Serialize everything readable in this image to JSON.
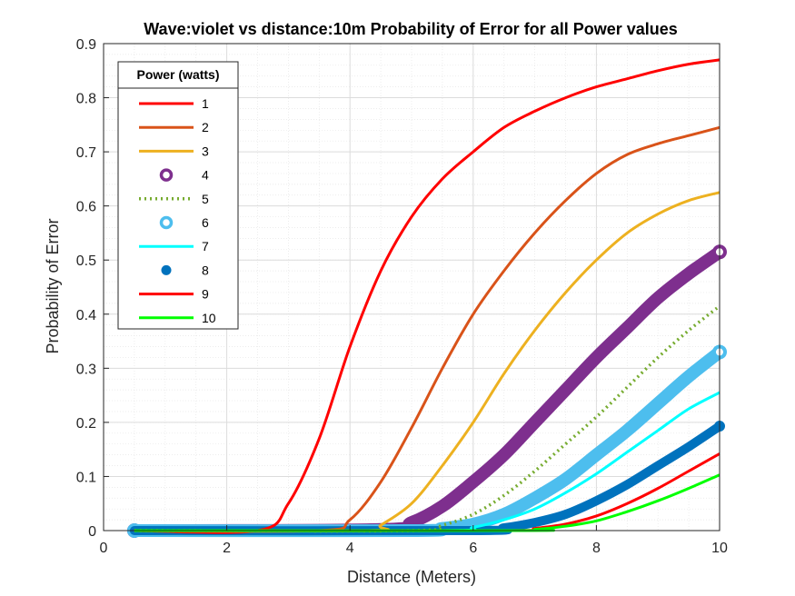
{
  "chart_data": {
    "type": "line",
    "title": "Wave:violet vs distance:10m Probability of Error for all Power values",
    "xlabel": "Distance (Meters)",
    "ylabel": "Probability of Error",
    "xlim": [
      0,
      10
    ],
    "ylim": [
      0,
      0.9
    ],
    "xticks": [
      "0",
      "2",
      "4",
      "6",
      "8",
      "10"
    ],
    "yticks": [
      "0",
      "0.1",
      "0.2",
      "0.3",
      "0.4",
      "0.5",
      "0.6",
      "0.7",
      "0.8",
      "0.9"
    ],
    "grid": true,
    "minor_grid": true,
    "legend": {
      "title": "Power (watts)",
      "placement": "top-left"
    },
    "series": [
      {
        "name": "1",
        "style": "line",
        "color": "#ff0000",
        "x": [
          0.5,
          2.5,
          3.0,
          3.5,
          4.0,
          4.5,
          5.0,
          5.5,
          6.0,
          6.5,
          7.0,
          7.5,
          8.0,
          8.5,
          9.0,
          9.5,
          10.0
        ],
        "y": [
          0,
          0,
          0.05,
          0.17,
          0.34,
          0.48,
          0.58,
          0.65,
          0.7,
          0.745,
          0.775,
          0.8,
          0.82,
          0.835,
          0.85,
          0.862,
          0.87
        ]
      },
      {
        "name": "2",
        "style": "line",
        "color": "#d95319",
        "x": [
          0.5,
          3.5,
          4.0,
          4.5,
          5.0,
          5.5,
          6.0,
          6.5,
          7.0,
          7.5,
          8.0,
          8.5,
          9.0,
          9.5,
          10.0
        ],
        "y": [
          0,
          0,
          0.02,
          0.09,
          0.19,
          0.3,
          0.4,
          0.48,
          0.55,
          0.61,
          0.66,
          0.695,
          0.715,
          0.73,
          0.745
        ]
      },
      {
        "name": "3",
        "style": "line",
        "color": "#edb120",
        "x": [
          0.5,
          4.3,
          4.5,
          5.0,
          5.5,
          6.0,
          6.5,
          7.0,
          7.5,
          8.0,
          8.5,
          9.0,
          9.5,
          10.0
        ],
        "y": [
          0,
          0,
          0.01,
          0.05,
          0.12,
          0.2,
          0.29,
          0.37,
          0.44,
          0.5,
          0.55,
          0.585,
          0.61,
          0.625
        ]
      },
      {
        "name": "4",
        "style": "marker",
        "color": "#7e2f8e",
        "x": [
          0.5,
          4.5,
          5.0,
          5.5,
          6.0,
          6.5,
          7.0,
          7.5,
          8.0,
          8.5,
          9.0,
          9.5,
          10.0
        ],
        "y": [
          0,
          0.002,
          0.015,
          0.045,
          0.09,
          0.14,
          0.2,
          0.26,
          0.32,
          0.375,
          0.43,
          0.475,
          0.515
        ]
      },
      {
        "name": "5",
        "style": "dotted",
        "color": "#77ac30",
        "x": [
          0.5,
          5.0,
          5.5,
          6.0,
          6.5,
          7.0,
          7.5,
          8.0,
          8.5,
          9.0,
          9.5,
          10.0
        ],
        "y": [
          0,
          0,
          0.01,
          0.03,
          0.065,
          0.11,
          0.16,
          0.21,
          0.265,
          0.32,
          0.37,
          0.415
        ]
      },
      {
        "name": "6",
        "style": "marker",
        "color": "#4dbeee",
        "x": [
          0.5,
          5.0,
          5.5,
          6.0,
          6.5,
          7.0,
          7.5,
          8.0,
          8.5,
          9.0,
          9.5,
          10.0
        ],
        "y": [
          0,
          0,
          0.004,
          0.012,
          0.03,
          0.06,
          0.095,
          0.14,
          0.185,
          0.235,
          0.285,
          0.33
        ]
      },
      {
        "name": "7",
        "style": "line",
        "color": "#00ffff",
        "x": [
          0.5,
          5.5,
          6.0,
          6.5,
          7.0,
          7.5,
          8.0,
          8.5,
          9.0,
          9.5,
          10.0
        ],
        "y": [
          0,
          0,
          0.006,
          0.02,
          0.04,
          0.07,
          0.105,
          0.145,
          0.185,
          0.225,
          0.255
        ]
      },
      {
        "name": "8",
        "style": "marker-filled",
        "color": "#0072bd",
        "x": [
          0.5,
          6.0,
          6.5,
          7.0,
          7.5,
          8.0,
          8.5,
          9.0,
          9.5,
          10.0
        ],
        "y": [
          0,
          0,
          0.005,
          0.015,
          0.03,
          0.055,
          0.085,
          0.12,
          0.155,
          0.193
        ]
      },
      {
        "name": "9",
        "style": "line",
        "color": "#ff0000",
        "x": [
          0.5,
          6.5,
          7.0,
          7.5,
          8.0,
          8.5,
          9.0,
          9.5,
          10.0
        ],
        "y": [
          0,
          0,
          0.004,
          0.012,
          0.027,
          0.05,
          0.078,
          0.11,
          0.142
        ]
      },
      {
        "name": "10",
        "style": "line",
        "color": "#00ff00",
        "x": [
          0.5,
          6.8,
          7.0,
          7.5,
          8.0,
          8.5,
          9.0,
          9.5,
          10.0
        ],
        "y": [
          0,
          0,
          0.002,
          0.008,
          0.018,
          0.035,
          0.055,
          0.078,
          0.103
        ]
      }
    ]
  }
}
